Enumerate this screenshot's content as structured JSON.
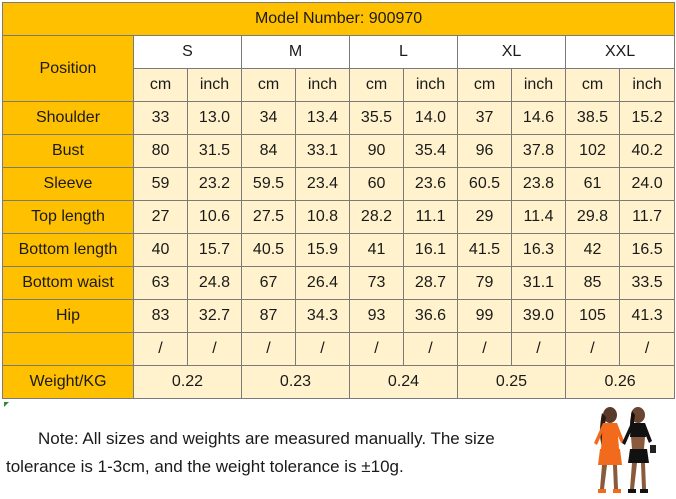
{
  "title": "Model Number: 900970",
  "position_label": "Position",
  "sizes": [
    "S",
    "M",
    "L",
    "XL",
    "XXL"
  ],
  "units": [
    "cm",
    "inch"
  ],
  "rows": [
    {
      "label": "Shoulder",
      "values": [
        "33",
        "13.0",
        "34",
        "13.4",
        "35.5",
        "14.0",
        "37",
        "14.6",
        "38.5",
        "15.2"
      ]
    },
    {
      "label": "Bust",
      "values": [
        "80",
        "31.5",
        "84",
        "33.1",
        "90",
        "35.4",
        "96",
        "37.8",
        "102",
        "40.2"
      ]
    },
    {
      "label": "Sleeve",
      "values": [
        "59",
        "23.2",
        "59.5",
        "23.4",
        "60",
        "23.6",
        "60.5",
        "23.8",
        "61",
        "24.0"
      ]
    },
    {
      "label": "Top length",
      "values": [
        "27",
        "10.6",
        "27.5",
        "10.8",
        "28.2",
        "11.1",
        "29",
        "11.4",
        "29.8",
        "11.7"
      ]
    },
    {
      "label": "Bottom length",
      "values": [
        "40",
        "15.7",
        "40.5",
        "15.9",
        "41",
        "16.1",
        "41.5",
        "16.3",
        "42",
        "16.5"
      ]
    },
    {
      "label": "Bottom waist",
      "values": [
        "63",
        "24.8",
        "67",
        "26.4",
        "73",
        "28.7",
        "79",
        "31.1",
        "85",
        "33.5"
      ]
    },
    {
      "label": "Hip",
      "values": [
        "83",
        "32.7",
        "87",
        "34.3",
        "93",
        "36.6",
        "99",
        "39.0",
        "105",
        "41.3"
      ]
    },
    {
      "label": "",
      "values": [
        "/",
        "/",
        "/",
        "/",
        "/",
        "/",
        "/",
        "/",
        "/",
        "/"
      ]
    }
  ],
  "weight": {
    "label": "Weight/KG",
    "values": [
      "0.22",
      "0.23",
      "0.24",
      "0.25",
      "0.26"
    ]
  },
  "note_line1": "Note: All sizes and weights are  measured manually. The size",
  "note_line2": "tolerance is 1-3cm, and the weight tolerance is ±10g.",
  "colors": {
    "header": "#ffc000",
    "cell": "#fff2cc",
    "border": "#7a7a7a"
  }
}
